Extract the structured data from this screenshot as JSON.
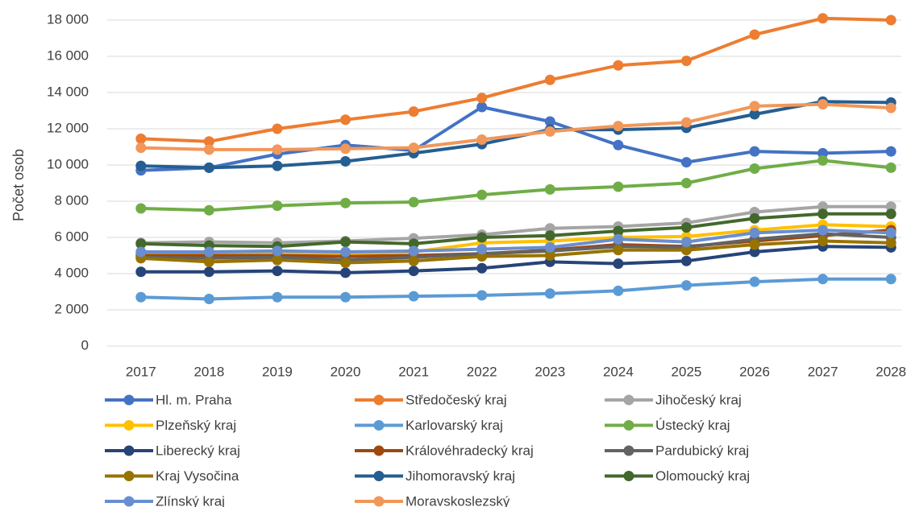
{
  "chart_data": {
    "type": "line",
    "y_label": "Počet osob",
    "categories": [
      "2017",
      "2018",
      "2019",
      "2020",
      "2021",
      "2022",
      "2023",
      "2024",
      "2025",
      "2026",
      "2027",
      "2028"
    ],
    "ylim": [
      0,
      18000
    ],
    "yticks": [
      0,
      {
        "value": 2000,
        "label": "2 000"
      },
      {
        "value": 4000,
        "label": "4 000"
      },
      {
        "value": 6000,
        "label": "6 000"
      },
      {
        "value": 8000,
        "label": "8 000"
      },
      {
        "value": 10000,
        "label": "10 000"
      },
      {
        "value": 12000,
        "label": "12 000"
      },
      {
        "value": 14000,
        "label": "14 000"
      },
      {
        "value": 16000,
        "label": "16 000"
      },
      {
        "value": 18000,
        "label": "18 000"
      }
    ],
    "grid": true,
    "legend": "bottom",
    "series": [
      {
        "name": "Hl. m. Praha",
        "color": "#4472c4",
        "values": [
          9700,
          9850,
          10600,
          11100,
          10800,
          13200,
          12400,
          11100,
          10150,
          10750,
          10650,
          10750
        ]
      },
      {
        "name": "Středočeský kraj",
        "color": "#ed7d31",
        "values": [
          11450,
          11300,
          12000,
          12500,
          12950,
          13700,
          14700,
          15500,
          15750,
          17200,
          18100,
          18000
        ]
      },
      {
        "name": "Jihočeský kraj",
        "color": "#a5a5a5",
        "values": [
          5700,
          5750,
          5700,
          5800,
          5950,
          6150,
          6500,
          6600,
          6800,
          7400,
          7700,
          7700
        ]
      },
      {
        "name": "Plzeňský kraj",
        "color": "#ffc000",
        "values": [
          5100,
          5100,
          5150,
          5100,
          5200,
          5700,
          5800,
          6000,
          6050,
          6400,
          6700,
          6600
        ]
      },
      {
        "name": "Karlovarský kraj",
        "color": "#5b9bd5",
        "values": [
          2700,
          2600,
          2700,
          2700,
          2750,
          2800,
          2900,
          3050,
          3350,
          3550,
          3700,
          3700
        ]
      },
      {
        "name": "Ústecký kraj",
        "color": "#70ad47",
        "values": [
          7600,
          7500,
          7750,
          7900,
          7950,
          8350,
          8650,
          8800,
          9000,
          9800,
          10250,
          9850
        ]
      },
      {
        "name": "Liberecký kraj",
        "color": "#264478",
        "values": [
          4100,
          4100,
          4150,
          4050,
          4150,
          4300,
          4650,
          4550,
          4700,
          5200,
          5500,
          5450
        ]
      },
      {
        "name": "Královéhradecký kraj",
        "color": "#9e480e",
        "values": [
          5000,
          5000,
          5000,
          4950,
          5000,
          5100,
          5300,
          5600,
          5500,
          5800,
          6100,
          6400
        ]
      },
      {
        "name": "Pardubický kraj",
        "color": "#636363",
        "values": [
          4900,
          4850,
          4900,
          4750,
          4900,
          5100,
          5250,
          5500,
          5450,
          5900,
          6200,
          6000
        ]
      },
      {
        "name": "Kraj Vysočina",
        "color": "#997300",
        "values": [
          4850,
          4650,
          4750,
          4600,
          4700,
          4950,
          5000,
          5300,
          5300,
          5600,
          5800,
          5700
        ]
      },
      {
        "name": "Jihomoravský kraj",
        "color": "#255e91",
        "values": [
          9950,
          9850,
          9950,
          10200,
          10650,
          11150,
          11950,
          11950,
          12050,
          12800,
          13500,
          13450
        ]
      },
      {
        "name": "Olomoucký kraj",
        "color": "#43682b",
        "values": [
          5650,
          5550,
          5500,
          5750,
          5650,
          6000,
          6100,
          6350,
          6550,
          7050,
          7300,
          7300
        ]
      },
      {
        "name": "Zlínský kraj",
        "color": "#698ed0",
        "values": [
          5200,
          5200,
          5250,
          5200,
          5250,
          5350,
          5450,
          5900,
          5750,
          6250,
          6400,
          6250
        ]
      },
      {
        "name": "Moravskoslezský",
        "color": "#f1975a",
        "values": [
          10950,
          10850,
          10850,
          10900,
          10950,
          11400,
          11850,
          12150,
          12350,
          13250,
          13350,
          13150
        ]
      }
    ]
  }
}
